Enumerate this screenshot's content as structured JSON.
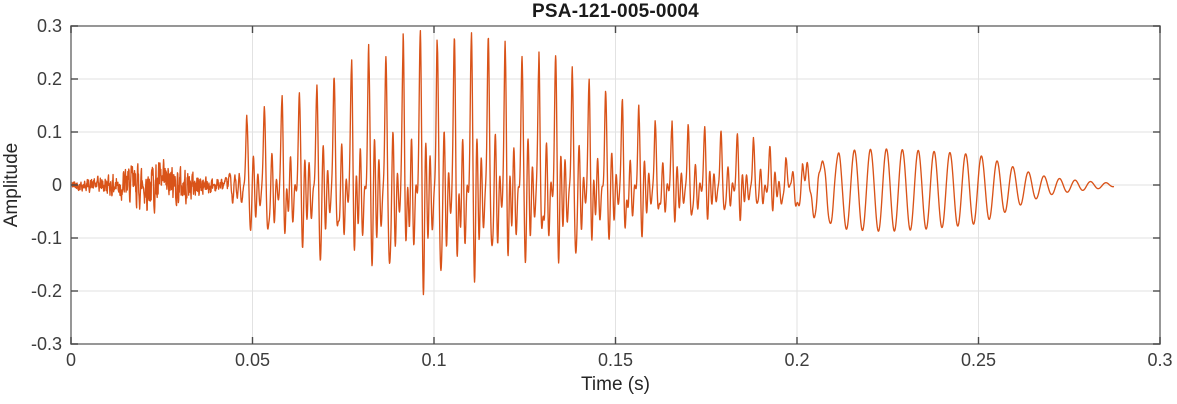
{
  "chart_data": {
    "type": "line",
    "title": "PSA-121-005-0004",
    "xlabel": "Time (s)",
    "ylabel": "Amplitude",
    "xlim": [
      0,
      0.3
    ],
    "ylim": [
      -0.3,
      0.3
    ],
    "xticks": [
      0,
      0.05,
      0.1,
      0.15,
      0.2,
      0.25,
      0.3
    ],
    "xtick_labels": [
      "0",
      "0.05",
      "0.1",
      "0.15",
      "0.2",
      "0.25",
      "0.3"
    ],
    "yticks": [
      -0.3,
      -0.2,
      -0.1,
      0,
      0.1,
      0.2,
      0.3
    ],
    "ytick_labels": [
      "-0.3",
      "-0.2",
      "-0.1",
      "0",
      "0.1",
      "0.2",
      "0.3"
    ],
    "grid": true,
    "legend": "none",
    "line_color": "#D95319",
    "grid_color": "#e2e2e2",
    "axis_color": "#7d7d7d",
    "tick_color": "#4a4a4a",
    "series_description": "Single audio waveform (speech-like recording): low-level noise 0-0.043 s, strong quasi-periodic voiced burst 0.044-0.19 s peaking at +0.29 / -0.21 near t=0.09-0.11 s, decaying into a smooth ~225 Hz sinusoid (+0.07 / -0.09) from 0.2-0.26 s, fading to zero by t=0.287 s",
    "peak_positive_amplitude": 0.29,
    "peak_negative_amplitude": -0.21,
    "signal_end_time": 0.287,
    "waveform_model": {
      "sample_rate": 12000,
      "t_end": 0.2872,
      "noise_seed": 42,
      "voiced_start": 0.044,
      "f0_base": 206,
      "f0_slope": 120,
      "formant_hz": 780,
      "blend_start": 0.188,
      "blend_end": 0.215,
      "negative_spike_ratio": 0.74,
      "envelope_noise": [
        [
          0.0,
          0.007
        ],
        [
          0.004,
          0.009
        ],
        [
          0.008,
          0.013
        ],
        [
          0.012,
          0.018
        ],
        [
          0.016,
          0.028
        ],
        [
          0.019,
          0.034
        ],
        [
          0.022,
          0.038
        ],
        [
          0.025,
          0.034
        ],
        [
          0.028,
          0.031
        ],
        [
          0.031,
          0.027
        ],
        [
          0.034,
          0.022
        ],
        [
          0.037,
          0.016
        ],
        [
          0.04,
          0.011
        ],
        [
          0.0435,
          0.008
        ],
        [
          0.046,
          0.004
        ],
        [
          0.05,
          0.0
        ]
      ],
      "envelope_voiced": [
        [
          0.043,
          0.0
        ],
        [
          0.0455,
          0.06
        ],
        [
          0.0475,
          0.12
        ],
        [
          0.05,
          0.145
        ],
        [
          0.054,
          0.16
        ],
        [
          0.058,
          0.175
        ],
        [
          0.062,
          0.175
        ],
        [
          0.066,
          0.185
        ],
        [
          0.07,
          0.205
        ],
        [
          0.074,
          0.215
        ],
        [
          0.078,
          0.235
        ],
        [
          0.082,
          0.255
        ],
        [
          0.086,
          0.26
        ],
        [
          0.09,
          0.275
        ],
        [
          0.094,
          0.285
        ],
        [
          0.098,
          0.27
        ],
        [
          0.102,
          0.27
        ],
        [
          0.106,
          0.283
        ],
        [
          0.11,
          0.277
        ],
        [
          0.114,
          0.268
        ],
        [
          0.118,
          0.26
        ],
        [
          0.122,
          0.25
        ],
        [
          0.126,
          0.24
        ],
        [
          0.13,
          0.235
        ],
        [
          0.134,
          0.225
        ],
        [
          0.138,
          0.21
        ],
        [
          0.142,
          0.195
        ],
        [
          0.146,
          0.175
        ],
        [
          0.15,
          0.16
        ],
        [
          0.155,
          0.145
        ],
        [
          0.16,
          0.13
        ],
        [
          0.165,
          0.12
        ],
        [
          0.17,
          0.112
        ],
        [
          0.175,
          0.104
        ],
        [
          0.18,
          0.096
        ],
        [
          0.185,
          0.089
        ],
        [
          0.19,
          0.084
        ],
        [
          0.195,
          0.079
        ],
        [
          0.2,
          0.077
        ],
        [
          0.205,
          0.076
        ],
        [
          0.21,
          0.077
        ],
        [
          0.215,
          0.079
        ],
        [
          0.22,
          0.081
        ],
        [
          0.225,
          0.082
        ],
        [
          0.23,
          0.08
        ],
        [
          0.235,
          0.078
        ],
        [
          0.24,
          0.075
        ],
        [
          0.245,
          0.072
        ],
        [
          0.25,
          0.068
        ],
        [
          0.254,
          0.058
        ],
        [
          0.258,
          0.046
        ],
        [
          0.262,
          0.034
        ],
        [
          0.266,
          0.024
        ],
        [
          0.27,
          0.017
        ],
        [
          0.274,
          0.013
        ],
        [
          0.278,
          0.01
        ],
        [
          0.282,
          0.007
        ],
        [
          0.2855,
          0.005
        ],
        [
          0.2872,
          0.003
        ]
      ]
    }
  }
}
